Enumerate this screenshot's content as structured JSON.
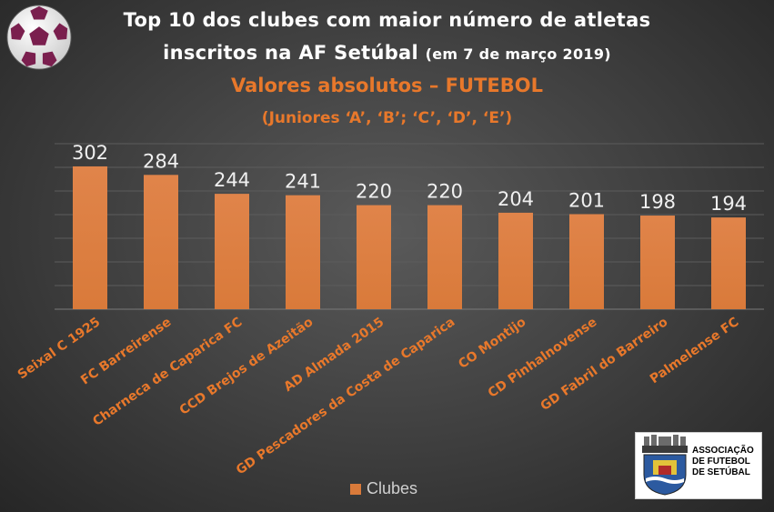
{
  "titles": {
    "line1": "Top 10 dos clubes com maior número de atletas",
    "line2_main": "inscritos na AF Setúbal",
    "line2_date": "(em 7 de março 2019)",
    "line3": "Valores absolutos – FUTEBOL",
    "line4": "(Juniores ‘A’, ‘B’; ‘C’, ‘D’, ‘E’)"
  },
  "logo": {
    "line1": "ASSOCIAÇÃO",
    "line2": "DE FUTEBOL",
    "line3": "DE SETÚBAL",
    "banner": "AFS"
  },
  "colors": {
    "bar": "#d97a3a",
    "bar_top": "#e0844a",
    "category": "#e8782b",
    "value_label": "#f0f0f0",
    "gridline": "#5c5c5c"
  },
  "chart_data": {
    "type": "bar",
    "title": "Top 10 dos clubes com maior número de atletas inscritos na AF Setúbal (em 7 de março 2019)",
    "categories": [
      "Seixal C 1925",
      "FC Barreirense",
      "Charneca de Caparica FC",
      "CCD Brejos de Azeitão",
      "AD Almada 2015",
      "GD Pescadores da Costa de Caparica",
      "CO Montijo",
      "CD Pinhalnovense",
      "GD Fabril do Barreiro",
      "Palmelense FC"
    ],
    "series": [
      {
        "name": "Clubes",
        "values": [
          302,
          284,
          244,
          241,
          220,
          220,
          204,
          201,
          198,
          194
        ]
      }
    ],
    "ylim": [
      0,
      350
    ],
    "grid": true,
    "legend": "bottom"
  }
}
